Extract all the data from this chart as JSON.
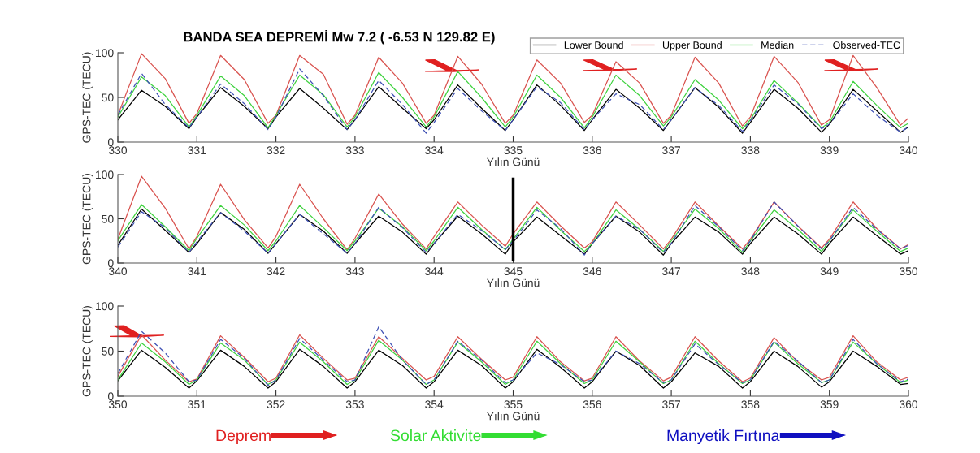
{
  "chart_data": [
    {
      "type": "line",
      "title": "BANDA SEA DEPREMİ Mw 7.2 ( -6.53 N 129.82 E)",
      "xlabel": "Yılın Günü",
      "ylabel": "GPS-TEC (TECU)",
      "xlim": [
        330,
        340
      ],
      "xticks": [
        330,
        331,
        332,
        333,
        334,
        335,
        336,
        337,
        338,
        339,
        340
      ],
      "ylim": [
        0,
        100
      ],
      "yticks": [
        0,
        50,
        100
      ],
      "legend": "top right",
      "grid": false,
      "x": [
        330,
        330.3,
        330.6,
        330.9,
        331,
        331.3,
        331.6,
        331.9,
        332,
        332.3,
        332.6,
        332.9,
        333,
        333.3,
        333.6,
        333.9,
        334,
        334.3,
        334.6,
        334.9,
        335,
        335.3,
        335.6,
        335.9,
        336,
        336.3,
        336.6,
        336.9,
        337,
        337.3,
        337.6,
        337.9,
        338,
        338.3,
        338.6,
        338.9,
        339,
        339.3,
        339.6,
        339.9,
        340
      ],
      "series": [
        {
          "name": "Lower Bound",
          "color": "#000000",
          "line_style": "solid",
          "values": [
            25,
            58,
            40,
            15,
            28,
            61,
            40,
            15,
            28,
            60,
            38,
            14,
            25,
            62,
            38,
            15,
            25,
            64,
            38,
            13,
            25,
            64,
            41,
            13,
            25,
            59,
            38,
            13,
            25,
            61,
            39,
            10,
            22,
            59,
            38,
            11,
            20,
            59,
            35,
            11,
            17
          ]
        },
        {
          "name": "Upper Bound",
          "color": "#d9534f",
          "line_style": "solid",
          "values": [
            30,
            99,
            71,
            21,
            32,
            97,
            70,
            21,
            30,
            97,
            76,
            20,
            30,
            95,
            66,
            21,
            30,
            96,
            65,
            21,
            30,
            92,
            66,
            22,
            30,
            90,
            66,
            21,
            30,
            95,
            66,
            18,
            28,
            96,
            67,
            19,
            25,
            97,
            61,
            19,
            27
          ]
        },
        {
          "name": "Median",
          "color": "#3fd23f",
          "line_style": "solid",
          "values": [
            28,
            73,
            52,
            17,
            30,
            74,
            52,
            16,
            30,
            75,
            53,
            17,
            28,
            78,
            50,
            17,
            28,
            79,
            50,
            17,
            28,
            75,
            50,
            16,
            28,
            75,
            52,
            18,
            28,
            70,
            47,
            15,
            25,
            69,
            44,
            16,
            22,
            68,
            41,
            16,
            21
          ]
        },
        {
          "name": "Observed-TEC",
          "color": "#3f51b5",
          "line_style": "dashed",
          "values": [
            30,
            77,
            42,
            16,
            28,
            65,
            43,
            14,
            28,
            82,
            52,
            14,
            25,
            69,
            42,
            10,
            22,
            60,
            35,
            13,
            25,
            62,
            44,
            14,
            25,
            54,
            42,
            14,
            25,
            61,
            41,
            12,
            24,
            64,
            43,
            15,
            20,
            54,
            30,
            11,
            17
          ]
        }
      ]
    },
    {
      "type": "line",
      "xlabel": "Yılın Günü",
      "ylabel": "GPS-TEC (TECU)",
      "xlim": [
        340,
        350
      ],
      "xticks": [
        340,
        341,
        342,
        343,
        344,
        345,
        346,
        347,
        348,
        349,
        350
      ],
      "ylim": [
        0,
        100
      ],
      "yticks": [
        0,
        50,
        100
      ],
      "grid": false,
      "ref_lines": [
        {
          "axis": "x",
          "value": 345,
          "color": "#000000"
        }
      ],
      "x": [
        340,
        340.3,
        340.6,
        340.9,
        341,
        341.3,
        341.6,
        341.9,
        342,
        342.3,
        342.6,
        342.9,
        343,
        343.3,
        343.6,
        343.9,
        344,
        344.3,
        344.6,
        344.9,
        345,
        345.3,
        345.6,
        345.9,
        346,
        346.3,
        346.6,
        346.9,
        347,
        347.3,
        347.6,
        347.9,
        348,
        348.3,
        348.6,
        348.9,
        349,
        349.3,
        349.6,
        349.9,
        350
      ],
      "series": [
        {
          "color": "#000000",
          "line_style": "solid",
          "values": [
            20,
            61,
            37,
            12,
            22,
            57,
            38,
            11,
            22,
            55,
            36,
            11,
            22,
            53,
            35,
            10,
            22,
            53,
            33,
            10,
            24,
            52,
            31,
            10,
            22,
            53,
            35,
            9,
            22,
            52,
            35,
            10,
            22,
            52,
            33,
            10,
            22,
            52,
            31,
            10,
            14
          ]
        },
        {
          "color": "#d9534f",
          "line_style": "solid",
          "values": [
            27,
            98,
            62,
            16,
            30,
            89,
            49,
            17,
            30,
            89,
            50,
            15,
            28,
            78,
            44,
            16,
            30,
            69,
            43,
            19,
            33,
            69,
            42,
            17,
            24,
            69,
            43,
            16,
            27,
            69,
            42,
            16,
            27,
            69,
            42,
            17,
            27,
            69,
            39,
            16,
            21
          ]
        },
        {
          "color": "#3fd23f",
          "line_style": "solid",
          "values": [
            25,
            66,
            41,
            14,
            28,
            65,
            43,
            14,
            25,
            65,
            40,
            14,
            25,
            62,
            41,
            14,
            25,
            63,
            38,
            15,
            27,
            63,
            37,
            13,
            22,
            60,
            38,
            13,
            25,
            61,
            39,
            12,
            25,
            60,
            38,
            13,
            25,
            60,
            36,
            13,
            17
          ]
        },
        {
          "color": "#3f51b5",
          "line_style": "dashed",
          "values": [
            18,
            58,
            40,
            12,
            24,
            57,
            36,
            11,
            22,
            55,
            33,
            11,
            22,
            63,
            40,
            12,
            22,
            55,
            37,
            15,
            25,
            60,
            39,
            9,
            22,
            53,
            38,
            12,
            22,
            65,
            41,
            14,
            25,
            69,
            42,
            16,
            25,
            63,
            38,
            16,
            20
          ]
        }
      ]
    },
    {
      "type": "line",
      "xlabel": "Yılın Günü",
      "ylabel": "GPS-TEC (TECU)",
      "xlim": [
        350,
        360
      ],
      "xticks": [
        350,
        351,
        352,
        353,
        354,
        355,
        356,
        357,
        358,
        359,
        360
      ],
      "ylim": [
        0,
        100
      ],
      "yticks": [
        0,
        50,
        100
      ],
      "grid": false,
      "annotations": [
        "Deprem",
        "Solar Aktivite",
        "Manyetik Fırtına"
      ],
      "x": [
        350,
        350.3,
        350.6,
        350.9,
        351,
        351.3,
        351.6,
        351.9,
        352,
        352.3,
        352.6,
        352.9,
        353,
        353.3,
        353.6,
        353.9,
        354,
        354.3,
        354.6,
        354.9,
        355,
        355.3,
        355.6,
        355.9,
        356,
        356.3,
        356.6,
        356.9,
        357,
        357.3,
        357.6,
        357.9,
        358,
        358.3,
        358.6,
        358.9,
        359,
        359.3,
        359.6,
        359.9,
        360
      ],
      "series": [
        {
          "color": "#000000",
          "line_style": "solid",
          "values": [
            17,
            51,
            32,
            9,
            17,
            51,
            33,
            9,
            16,
            52,
            33,
            9,
            16,
            51,
            34,
            9,
            16,
            51,
            34,
            9,
            16,
            52,
            32,
            9,
            16,
            50,
            34,
            9,
            16,
            48,
            33,
            9,
            16,
            50,
            33,
            10,
            16,
            50,
            33,
            13,
            14
          ]
        },
        {
          "color": "#d9534f",
          "line_style": "solid",
          "values": [
            22,
            68,
            40,
            16,
            19,
            67,
            43,
            16,
            20,
            68,
            42,
            18,
            20,
            66,
            42,
            18,
            22,
            66,
            41,
            18,
            21,
            66,
            38,
            17,
            20,
            66,
            39,
            17,
            21,
            66,
            39,
            16,
            20,
            65,
            38,
            18,
            21,
            67,
            38,
            18,
            21
          ]
        },
        {
          "color": "#3fd23f",
          "line_style": "solid",
          "values": [
            18,
            59,
            38,
            13,
            18,
            59,
            40,
            13,
            18,
            60,
            38,
            13,
            18,
            62,
            40,
            13,
            18,
            60,
            38,
            13,
            18,
            61,
            36,
            14,
            18,
            61,
            38,
            14,
            18,
            61,
            36,
            14,
            18,
            60,
            36,
            15,
            18,
            60,
            36,
            15,
            18
          ]
        },
        {
          "color": "#3f51b5",
          "line_style": "dashed",
          "values": [
            25,
            72,
            48,
            16,
            18,
            63,
            42,
            12,
            18,
            64,
            40,
            16,
            18,
            77,
            40,
            13,
            18,
            61,
            40,
            15,
            18,
            48,
            35,
            16,
            18,
            50,
            36,
            15,
            18,
            58,
            35,
            15,
            18,
            61,
            39,
            15,
            18,
            63,
            36,
            16,
            19
          ]
        }
      ]
    }
  ]
}
